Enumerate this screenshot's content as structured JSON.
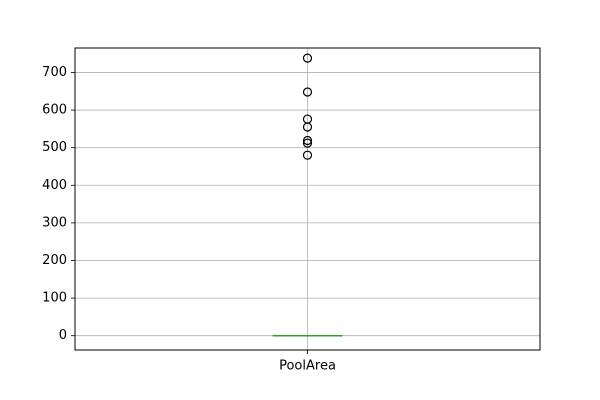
{
  "chart_data": {
    "type": "box",
    "title": "",
    "xlabel": "",
    "ylabel": "",
    "categories": [
      "PoolArea"
    ],
    "ylim": [
      -38,
      765
    ],
    "yticks": [
      0,
      100,
      200,
      300,
      400,
      500,
      600,
      700
    ],
    "ytick_labels": [
      "0",
      "100",
      "200",
      "300",
      "400",
      "500",
      "600",
      "700"
    ],
    "grid": true,
    "boxes": [
      {
        "name": "PoolArea",
        "min": 0,
        "q1": 0,
        "median": 0,
        "q3": 0,
        "max": 0,
        "outliers": [
          480,
          512,
          519,
          555,
          576,
          648,
          738
        ]
      }
    ],
    "colors": {
      "box": "#1f77b4",
      "median": "#2ca02c",
      "grid": "#b0b0b0",
      "outlier_edge": "#000000",
      "axes": "#000000"
    }
  }
}
